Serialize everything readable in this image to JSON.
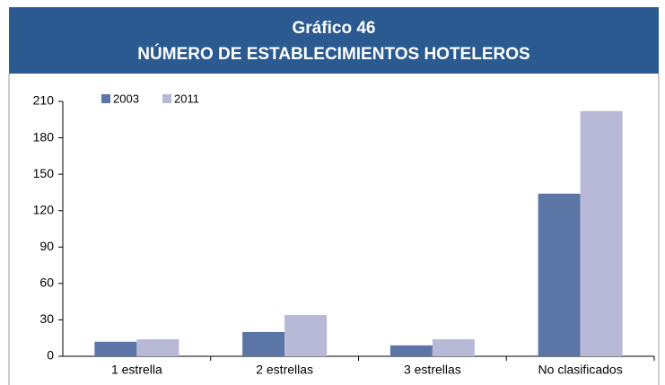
{
  "chart_data": {
    "type": "bar",
    "title": "Gráfico 46",
    "subtitle": "NÚMERO DE ESTABLECIMIENTOS HOTELEROS",
    "categories": [
      "1 estrella",
      "2 estrellas",
      "3 estrellas",
      "No clasificados"
    ],
    "series": [
      {
        "name": "2003",
        "color": "#5b76a6",
        "values": [
          12,
          20,
          9,
          134
        ]
      },
      {
        "name": "2011",
        "color": "#b7b9d7",
        "values": [
          14,
          34,
          14,
          202
        ]
      }
    ],
    "ylim": [
      0,
      210
    ],
    "yticks": [
      0,
      30,
      60,
      90,
      120,
      150,
      180,
      210
    ]
  }
}
